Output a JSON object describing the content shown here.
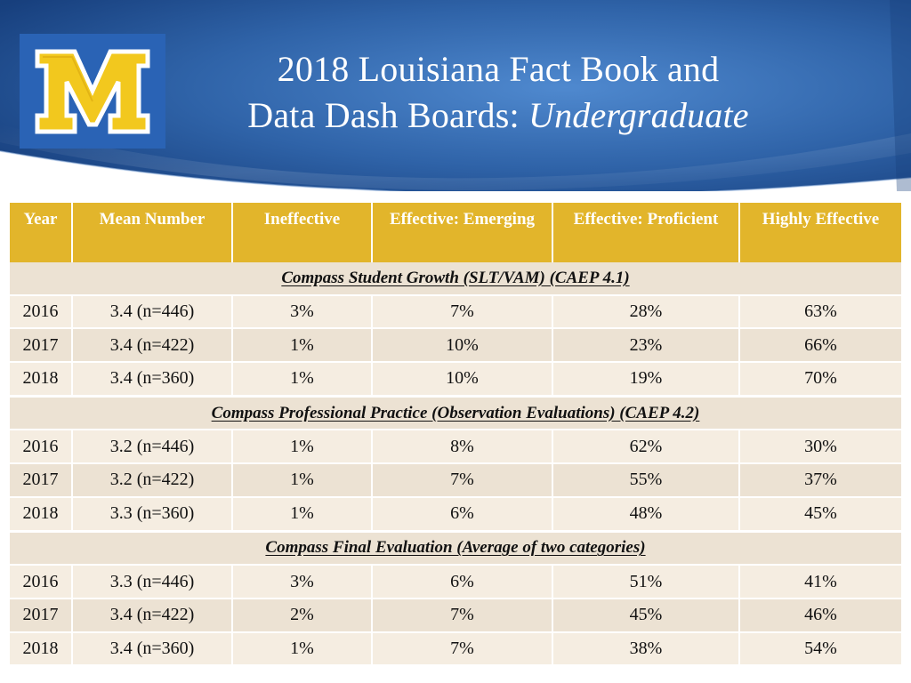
{
  "slide": {
    "title_line1": "2018 Louisiana Fact Book and",
    "title_line2_prefix": "Data Dash Boards: ",
    "title_line2_italic": "Undergraduate",
    "logo": {
      "icon": "letter-m-logo-icon",
      "letter": "M",
      "colors": {
        "blue": "#2a63b5",
        "gold": "#f2c81e",
        "white": "#ffffff"
      }
    },
    "banner_color": "#2f63a8"
  },
  "table": {
    "headers": [
      "Year",
      "Mean Number",
      "Ineffective",
      "Effective: Emerging",
      "Effective: Proficient",
      "Highly Effective"
    ],
    "header_color": "#e2b52b",
    "sections": [
      {
        "title": "Compass Student Growth (SLT/VAM) (CAEP 4.1)",
        "rows": [
          [
            "2016",
            "3.4 (n=446)",
            "3%",
            "7%",
            "28%",
            "63%"
          ],
          [
            "2017",
            "3.4 (n=422)",
            "1%",
            "10%",
            "23%",
            "66%"
          ],
          [
            "2018",
            "3.4 (n=360)",
            "1%",
            "10%",
            "19%",
            "70%"
          ]
        ]
      },
      {
        "title": "Compass Professional Practice (Observation Evaluations) (CAEP 4.2)",
        "rows": [
          [
            "2016",
            "3.2 (n=446)",
            "1%",
            "8%",
            "62%",
            "30%"
          ],
          [
            "2017",
            "3.2 (n=422)",
            "1%",
            "7%",
            "55%",
            "37%"
          ],
          [
            "2018",
            "3.3 (n=360)",
            "1%",
            "6%",
            "48%",
            "45%"
          ]
        ]
      },
      {
        "title": "Compass Final Evaluation (Average of two categories)",
        "rows": [
          [
            "2016",
            "3.3 (n=446)",
            "3%",
            "6%",
            "51%",
            "41%"
          ],
          [
            "2017",
            "3.4 (n=422)",
            "2%",
            "7%",
            "45%",
            "46%"
          ],
          [
            "2018",
            "3.4 (n=360)",
            "1%",
            "7%",
            "38%",
            "54%"
          ]
        ]
      }
    ]
  }
}
